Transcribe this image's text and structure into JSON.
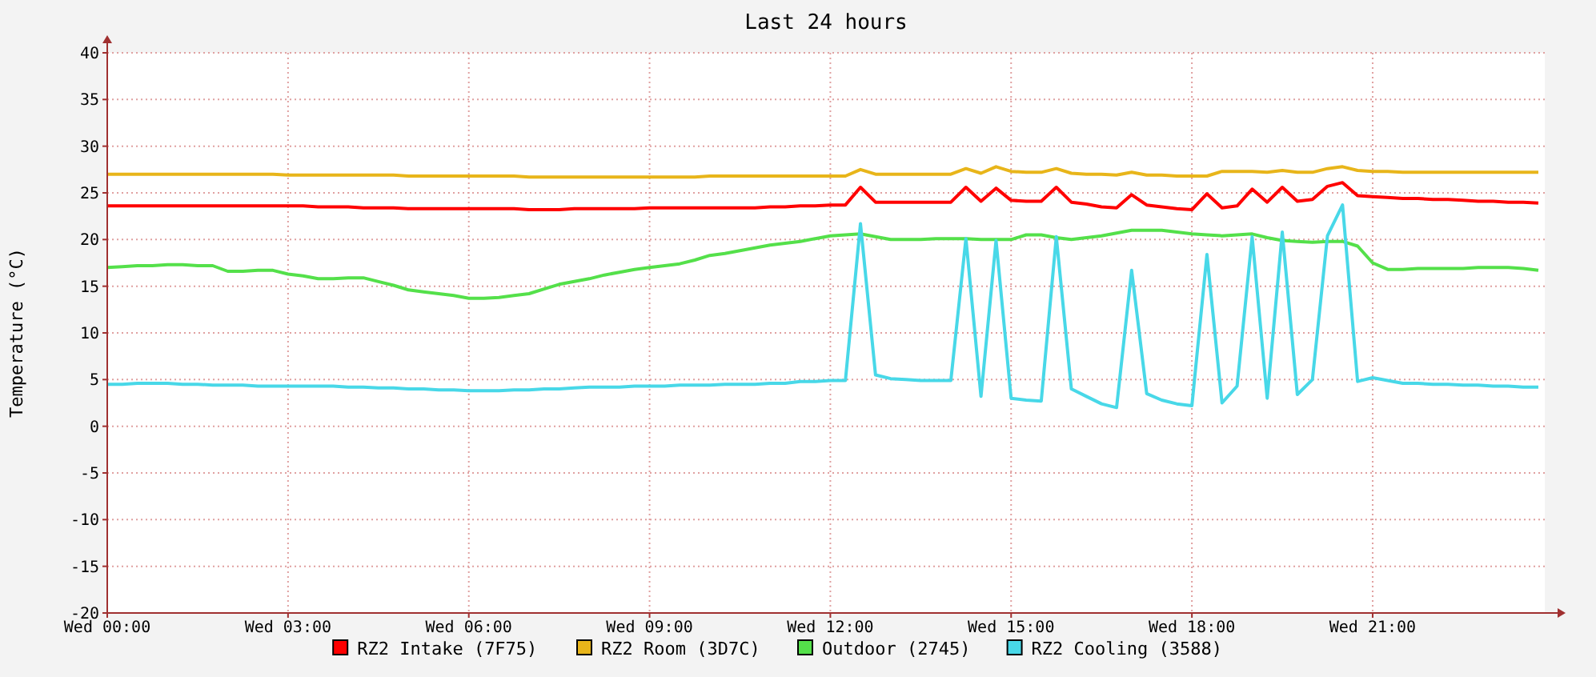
{
  "chart_data": {
    "type": "line",
    "title": "Last 24 hours",
    "ylabel": "Temperature (°C)",
    "categories": [
      "Wed 00:00",
      null,
      null,
      null,
      null,
      null,
      null,
      null,
      null,
      null,
      null,
      null,
      "Wed 03:00",
      null,
      null,
      null,
      null,
      null,
      null,
      null,
      null,
      null,
      null,
      null,
      "Wed 06:00",
      null,
      null,
      null,
      null,
      null,
      null,
      null,
      null,
      null,
      null,
      null,
      "Wed 09:00",
      null,
      null,
      null,
      null,
      null,
      null,
      null,
      null,
      null,
      null,
      null,
      "Wed 12:00",
      null,
      null,
      null,
      null,
      null,
      null,
      null,
      null,
      null,
      null,
      null,
      "Wed 15:00",
      null,
      null,
      null,
      null,
      null,
      null,
      null,
      null,
      null,
      null,
      null,
      "Wed 18:00",
      null,
      null,
      null,
      null,
      null,
      null,
      null,
      null,
      null,
      null,
      null,
      "Wed 21:00",
      null,
      null,
      null,
      null,
      null,
      null,
      null,
      null,
      null,
      null,
      null
    ],
    "ylim": [
      -20,
      40
    ],
    "yticks": [
      -20,
      -15,
      -10,
      -5,
      0,
      5,
      10,
      15,
      20,
      25,
      30,
      35,
      40
    ],
    "grid": true,
    "legend": "bottom",
    "marker": "none",
    "line_style": "solid",
    "series": [
      {
        "name": "RZ2 Intake (7F75)",
        "color": "#ff0000",
        "values": [
          23.6,
          23.6,
          23.6,
          23.6,
          23.6,
          23.6,
          23.6,
          23.6,
          23.6,
          23.6,
          23.6,
          23.6,
          23.6,
          23.6,
          23.5,
          23.5,
          23.5,
          23.4,
          23.4,
          23.4,
          23.3,
          23.3,
          23.3,
          23.3,
          23.3,
          23.3,
          23.3,
          23.3,
          23.2,
          23.2,
          23.2,
          23.3,
          23.3,
          23.3,
          23.3,
          23.3,
          23.4,
          23.4,
          23.4,
          23.4,
          23.4,
          23.4,
          23.4,
          23.4,
          23.5,
          23.5,
          23.6,
          23.6,
          23.7,
          23.7,
          25.6,
          24.0,
          24.0,
          24.0,
          24.0,
          24.0,
          24.0,
          25.6,
          24.1,
          25.5,
          24.2,
          24.1,
          24.1,
          25.6,
          24.0,
          23.8,
          23.5,
          23.4,
          24.8,
          23.7,
          23.5,
          23.3,
          23.2,
          24.9,
          23.4,
          23.6,
          25.4,
          24.0,
          25.6,
          24.1,
          24.3,
          25.7,
          26.1,
          24.7,
          24.6,
          24.5,
          24.4,
          24.4,
          24.3,
          24.3,
          24.2,
          24.1,
          24.1,
          24.0,
          24.0,
          23.9
        ]
      },
      {
        "name": "RZ2 Room (3D7C)",
        "color": "#e8b51a",
        "values": [
          27.0,
          27.0,
          27.0,
          27.0,
          27.0,
          27.0,
          27.0,
          27.0,
          27.0,
          27.0,
          27.0,
          27.0,
          26.9,
          26.9,
          26.9,
          26.9,
          26.9,
          26.9,
          26.9,
          26.9,
          26.8,
          26.8,
          26.8,
          26.8,
          26.8,
          26.8,
          26.8,
          26.8,
          26.7,
          26.7,
          26.7,
          26.7,
          26.7,
          26.7,
          26.7,
          26.7,
          26.7,
          26.7,
          26.7,
          26.7,
          26.8,
          26.8,
          26.8,
          26.8,
          26.8,
          26.8,
          26.8,
          26.8,
          26.8,
          26.8,
          27.5,
          27.0,
          27.0,
          27.0,
          27.0,
          27.0,
          27.0,
          27.6,
          27.1,
          27.8,
          27.3,
          27.2,
          27.2,
          27.6,
          27.1,
          27.0,
          27.0,
          26.9,
          27.2,
          26.9,
          26.9,
          26.8,
          26.8,
          26.8,
          27.3,
          27.3,
          27.3,
          27.2,
          27.4,
          27.2,
          27.2,
          27.6,
          27.8,
          27.4,
          27.3,
          27.3,
          27.2,
          27.2,
          27.2,
          27.2,
          27.2,
          27.2,
          27.2,
          27.2,
          27.2,
          27.2
        ]
      },
      {
        "name": "Outdoor (2745)",
        "color": "#54e04a",
        "values": [
          17.0,
          17.1,
          17.2,
          17.2,
          17.3,
          17.3,
          17.2,
          17.2,
          16.6,
          16.6,
          16.7,
          16.7,
          16.3,
          16.1,
          15.8,
          15.8,
          15.9,
          15.9,
          15.5,
          15.1,
          14.6,
          14.4,
          14.2,
          14.0,
          13.7,
          13.7,
          13.8,
          14.0,
          14.2,
          14.7,
          15.2,
          15.5,
          15.8,
          16.2,
          16.5,
          16.8,
          17.0,
          17.2,
          17.4,
          17.8,
          18.3,
          18.5,
          18.8,
          19.1,
          19.4,
          19.6,
          19.8,
          20.1,
          20.4,
          20.5,
          20.6,
          20.3,
          20.0,
          20.0,
          20.0,
          20.1,
          20.1,
          20.1,
          20.0,
          20.0,
          20.0,
          20.5,
          20.5,
          20.2,
          20.0,
          20.2,
          20.4,
          20.7,
          21.0,
          21.0,
          21.0,
          20.8,
          20.6,
          20.5,
          20.4,
          20.5,
          20.6,
          20.2,
          19.9,
          19.8,
          19.7,
          19.8,
          19.8,
          19.3,
          17.5,
          16.8,
          16.8,
          16.9,
          16.9,
          16.9,
          16.9,
          17.0,
          17.0,
          17.0,
          16.9,
          16.7
        ]
      },
      {
        "name": "RZ2 Cooling (3588)",
        "color": "#48d8e8",
        "values": [
          4.5,
          4.5,
          4.6,
          4.6,
          4.6,
          4.5,
          4.5,
          4.4,
          4.4,
          4.4,
          4.3,
          4.3,
          4.3,
          4.3,
          4.3,
          4.3,
          4.2,
          4.2,
          4.1,
          4.1,
          4.0,
          4.0,
          3.9,
          3.9,
          3.8,
          3.8,
          3.8,
          3.9,
          3.9,
          4.0,
          4.0,
          4.1,
          4.2,
          4.2,
          4.2,
          4.3,
          4.3,
          4.3,
          4.4,
          4.4,
          4.4,
          4.5,
          4.5,
          4.5,
          4.6,
          4.6,
          4.8,
          4.8,
          4.9,
          4.9,
          21.7,
          5.5,
          5.1,
          5.0,
          4.9,
          4.9,
          4.9,
          20.1,
          3.2,
          19.9,
          3.0,
          2.8,
          2.7,
          20.3,
          4.0,
          3.2,
          2.4,
          2.0,
          16.7,
          3.5,
          2.8,
          2.4,
          2.2,
          18.4,
          2.5,
          4.3,
          20.3,
          3.0,
          20.8,
          3.4,
          5.0,
          20.4,
          23.7,
          4.8,
          5.2,
          4.9,
          4.6,
          4.6,
          4.5,
          4.5,
          4.4,
          4.4,
          4.3,
          4.3,
          4.2,
          4.2
        ]
      }
    ]
  }
}
